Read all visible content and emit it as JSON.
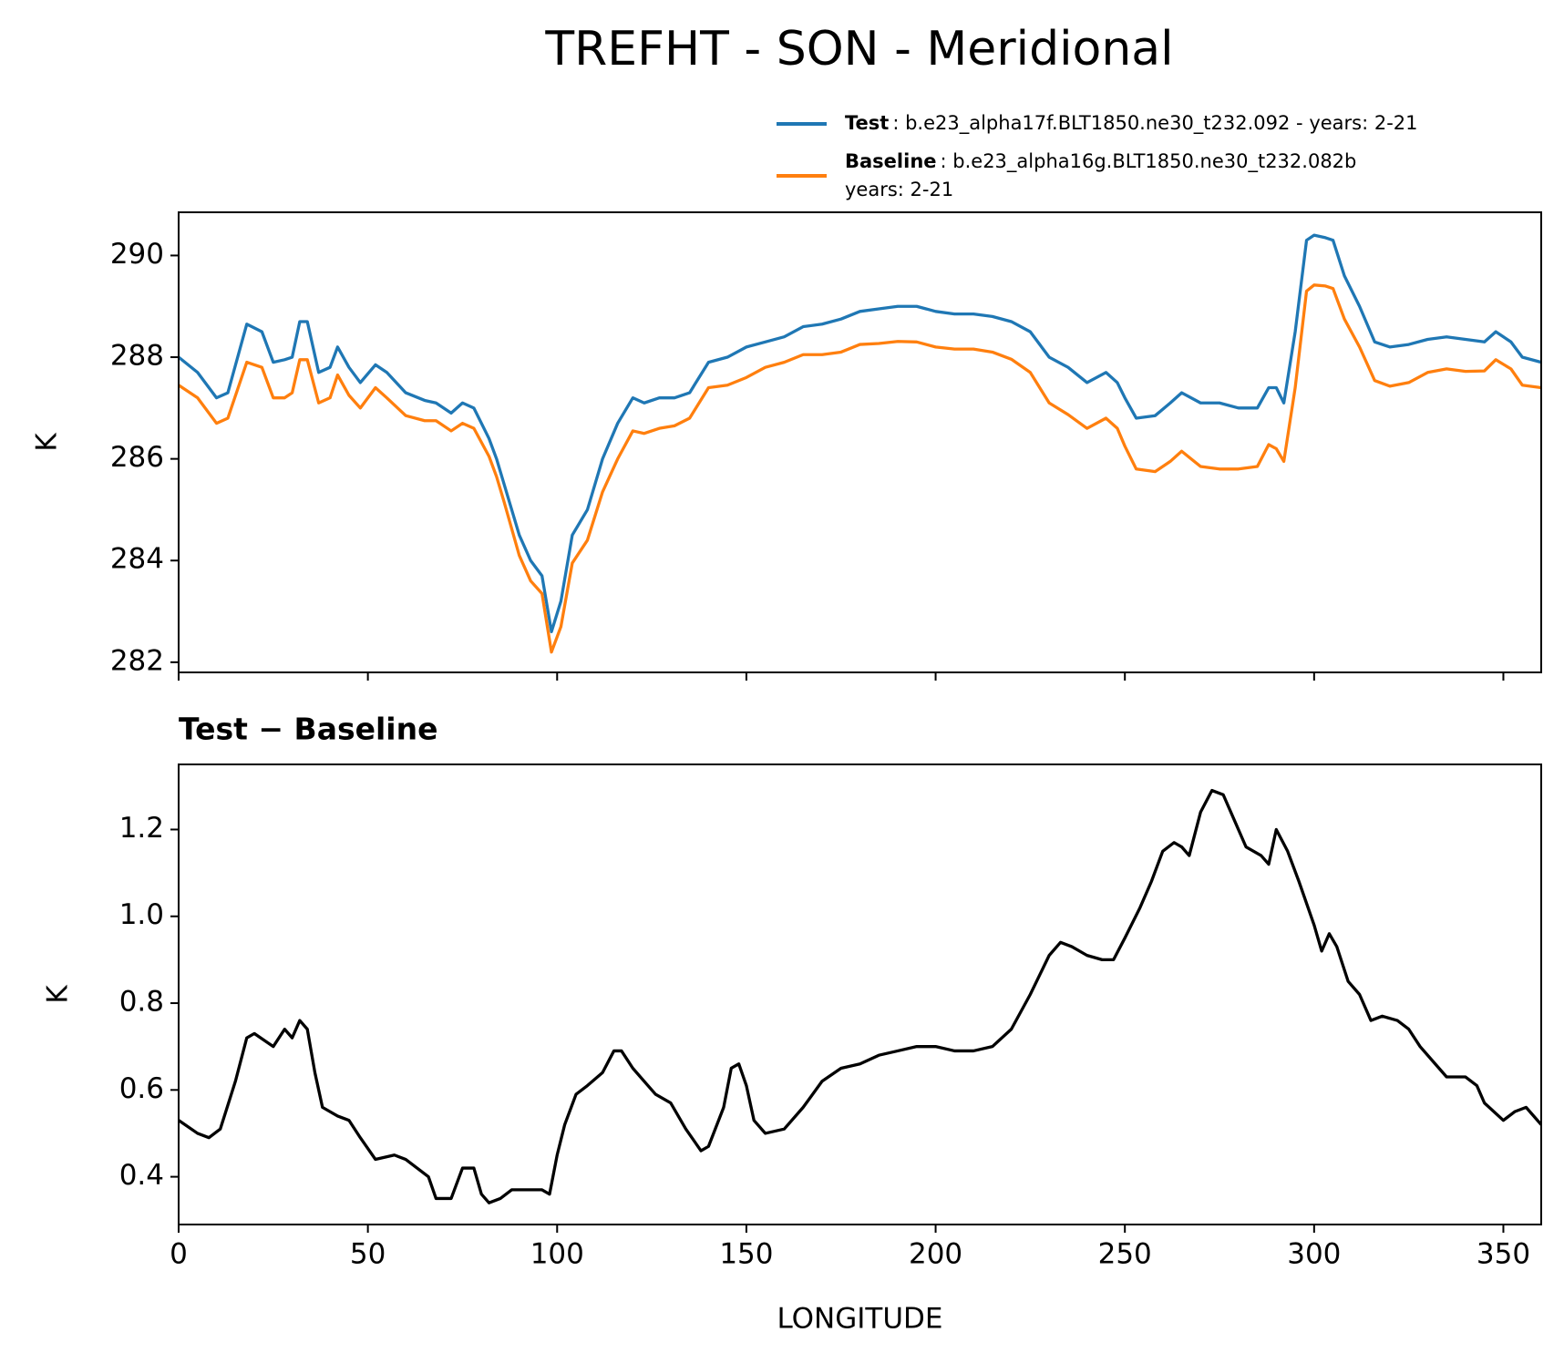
{
  "title": "TREFHT - SON - Meridional",
  "chart_data": [
    {
      "type": "line",
      "ylabel": "K",
      "x": [
        0,
        5,
        10,
        13,
        18,
        22,
        25,
        28,
        30,
        32,
        34,
        37,
        40,
        42,
        45,
        48,
        52,
        55,
        60,
        65,
        68,
        72,
        75,
        78,
        82,
        84,
        86,
        90,
        93,
        96,
        98.5,
        101,
        104,
        108,
        112,
        116,
        120,
        123,
        127,
        131,
        135,
        140,
        145,
        150,
        155,
        160,
        165,
        170,
        175,
        180,
        185,
        190,
        195,
        200,
        205,
        210,
        215,
        220,
        225,
        230,
        235,
        240,
        245,
        248,
        250,
        253,
        258,
        262,
        265,
        270,
        275,
        280,
        285,
        288,
        290,
        292,
        295,
        298,
        300,
        303,
        305,
        308,
        312,
        316,
        320,
        325,
        330,
        335,
        340,
        345,
        348,
        352,
        355,
        360
      ],
      "series": [
        {
          "name": "Test",
          "legend_text": [
            ": b.e23_alpha17f.BLT1850.ne30_t232.092 - years: 2-21"
          ],
          "color": "#1f77b4",
          "values": [
            288.0,
            287.7,
            287.2,
            287.3,
            288.65,
            288.5,
            287.9,
            287.95,
            288.0,
            288.7,
            288.7,
            287.7,
            287.8,
            288.2,
            287.8,
            287.5,
            287.85,
            287.7,
            287.3,
            287.15,
            287.1,
            286.9,
            287.1,
            287.0,
            286.4,
            286.0,
            285.5,
            284.5,
            284.0,
            283.7,
            282.6,
            283.2,
            284.5,
            285.0,
            286.0,
            286.7,
            287.2,
            287.1,
            287.2,
            287.2,
            287.3,
            287.9,
            288.0,
            288.2,
            288.3,
            288.4,
            288.6,
            288.65,
            288.75,
            288.9,
            288.95,
            289.0,
            289.0,
            288.9,
            288.85,
            288.85,
            288.8,
            288.7,
            288.5,
            288.0,
            287.8,
            287.5,
            287.7,
            287.5,
            287.2,
            286.8,
            286.85,
            287.1,
            287.3,
            287.1,
            287.1,
            287.0,
            287.0,
            287.4,
            287.4,
            287.1,
            288.5,
            290.3,
            290.4,
            290.35,
            290.3,
            289.6,
            289.0,
            288.3,
            288.2,
            288.25,
            288.35,
            288.4,
            288.35,
            288.3,
            288.5,
            288.3,
            288.0,
            287.9
          ]
        },
        {
          "name": "Baseline",
          "legend_text": [
            ": b.e23_alpha16g.BLT1850.ne30_t232.082b",
            "years: 2-21"
          ],
          "color": "#ff7f0e",
          "values": [
            287.45,
            287.2,
            286.7,
            286.8,
            287.9,
            287.8,
            287.2,
            287.2,
            287.3,
            287.95,
            287.95,
            287.1,
            287.2,
            287.65,
            287.25,
            287.0,
            287.4,
            287.2,
            286.85,
            286.75,
            286.75,
            286.55,
            286.7,
            286.6,
            286.05,
            285.65,
            285.15,
            284.1,
            283.6,
            283.35,
            282.2,
            282.7,
            283.95,
            284.4,
            285.35,
            286.0,
            286.55,
            286.5,
            286.6,
            286.65,
            286.8,
            287.4,
            287.45,
            287.6,
            287.8,
            287.9,
            288.05,
            288.05,
            288.1,
            288.25,
            288.27,
            288.31,
            288.3,
            288.2,
            288.16,
            288.16,
            288.1,
            287.96,
            287.7,
            287.1,
            286.87,
            286.6,
            286.8,
            286.6,
            286.25,
            285.8,
            285.75,
            285.95,
            286.15,
            285.85,
            285.8,
            285.8,
            285.85,
            286.28,
            286.2,
            285.95,
            287.4,
            289.3,
            289.42,
            289.4,
            289.35,
            288.75,
            288.2,
            287.54,
            287.43,
            287.5,
            287.7,
            287.77,
            287.72,
            287.73,
            287.95,
            287.77,
            287.45,
            287.4
          ]
        }
      ],
      "xlim": [
        0,
        360
      ],
      "xticks": [
        0,
        50,
        100,
        150,
        200,
        250,
        300,
        350
      ],
      "xtick_labels": false,
      "ylim": [
        281.8,
        290.85
      ],
      "yticks": [
        282,
        284,
        286,
        288,
        290
      ],
      "legend": "upper right"
    },
    {
      "type": "line",
      "title": "Test − Baseline",
      "xlabel": "LONGITUDE",
      "ylabel": "K",
      "x": [
        0,
        5,
        8,
        11,
        15,
        18,
        20,
        25,
        28,
        30,
        32,
        34,
        36,
        38,
        42,
        45,
        48,
        52,
        57,
        60,
        63,
        66,
        68,
        72,
        75,
        78,
        80,
        82,
        85,
        88,
        92,
        96,
        98,
        100,
        102,
        105,
        108,
        112,
        115,
        117,
        120,
        123,
        126,
        130,
        134,
        138,
        140,
        144,
        146,
        148,
        150,
        152,
        155,
        160,
        165,
        170,
        175,
        180,
        185,
        190,
        195,
        200,
        205,
        210,
        215,
        220,
        225,
        230,
        233,
        236,
        240,
        244,
        247,
        250,
        254,
        257,
        260,
        263,
        265,
        267,
        270,
        273,
        276,
        279,
        282,
        286,
        288,
        290,
        293,
        296,
        300,
        302,
        304,
        306,
        309,
        312,
        315,
        318,
        322,
        325,
        328,
        332,
        335,
        340,
        343,
        345,
        350,
        353,
        356,
        360
      ],
      "series": [
        {
          "color": "#000000",
          "values": [
            0.53,
            0.5,
            0.49,
            0.51,
            0.62,
            0.72,
            0.73,
            0.7,
            0.74,
            0.72,
            0.76,
            0.74,
            0.64,
            0.56,
            0.54,
            0.53,
            0.49,
            0.44,
            0.45,
            0.44,
            0.42,
            0.4,
            0.35,
            0.35,
            0.42,
            0.42,
            0.36,
            0.34,
            0.35,
            0.37,
            0.37,
            0.37,
            0.36,
            0.45,
            0.52,
            0.59,
            0.61,
            0.64,
            0.69,
            0.69,
            0.65,
            0.62,
            0.59,
            0.57,
            0.51,
            0.46,
            0.47,
            0.56,
            0.65,
            0.66,
            0.61,
            0.53,
            0.5,
            0.51,
            0.56,
            0.62,
            0.65,
            0.66,
            0.68,
            0.69,
            0.7,
            0.7,
            0.69,
            0.69,
            0.7,
            0.74,
            0.82,
            0.91,
            0.94,
            0.93,
            0.91,
            0.9,
            0.9,
            0.95,
            1.02,
            1.08,
            1.15,
            1.17,
            1.16,
            1.14,
            1.24,
            1.29,
            1.28,
            1.22,
            1.16,
            1.14,
            1.12,
            1.2,
            1.15,
            1.08,
            0.98,
            0.92,
            0.96,
            0.93,
            0.85,
            0.82,
            0.76,
            0.77,
            0.76,
            0.74,
            0.7,
            0.66,
            0.63,
            0.63,
            0.61,
            0.57,
            0.53,
            0.55,
            0.56,
            0.52
          ]
        }
      ],
      "xlim": [
        0,
        360
      ],
      "xticks": [
        0,
        50,
        100,
        150,
        200,
        250,
        300,
        350
      ],
      "xtick_labels": true,
      "ylim": [
        0.29,
        1.35
      ],
      "yticks": [
        0.4,
        0.6,
        0.8,
        {
          "value": 1.0,
          "label": "1.0"
        },
        1.2
      ]
    }
  ]
}
